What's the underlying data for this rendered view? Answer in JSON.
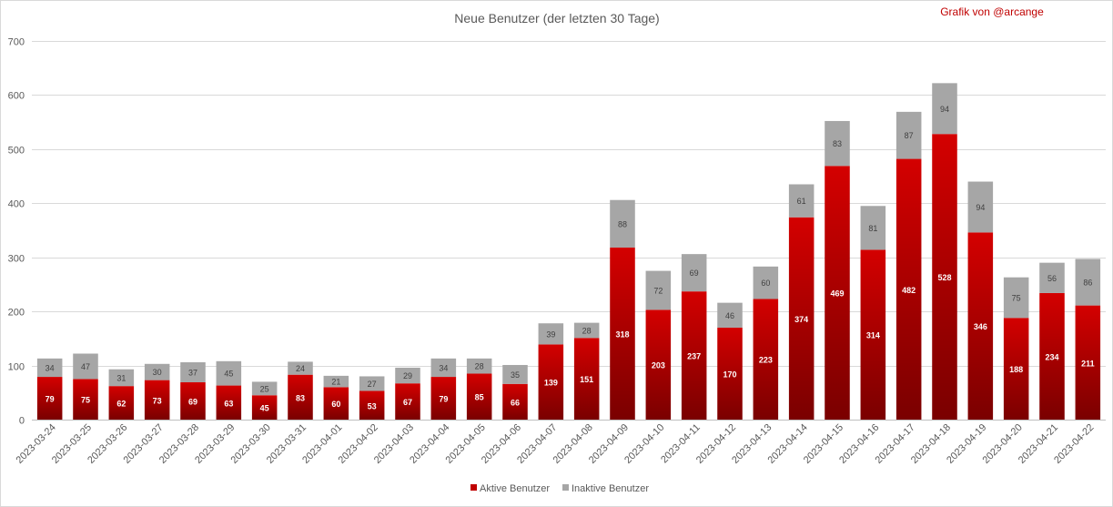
{
  "chart_data": {
    "type": "bar",
    "stacked": true,
    "title": "Neue Benutzer (der letzten 30 Tage)",
    "credit": "Grafik von @arcange",
    "xlabel": "",
    "ylabel": "",
    "ylim": [
      0,
      700
    ],
    "yticks": [
      0,
      100,
      200,
      300,
      400,
      500,
      600,
      700
    ],
    "grid": true,
    "legend_position": "bottom",
    "categories": [
      "2023-03-24",
      "2023-03-25",
      "2023-03-26",
      "2023-03-27",
      "2023-03-28",
      "2023-03-29",
      "2023-03-30",
      "2023-03-31",
      "2023-04-01",
      "2023-04-02",
      "2023-04-03",
      "2023-04-04",
      "2023-04-05",
      "2023-04-06",
      "2023-04-07",
      "2023-04-08",
      "2023-04-09",
      "2023-04-10",
      "2023-04-11",
      "2023-04-12",
      "2023-04-13",
      "2023-04-14",
      "2023-04-15",
      "2023-04-16",
      "2023-04-17",
      "2023-04-18",
      "2023-04-19",
      "2023-04-20",
      "2023-04-21",
      "2023-04-22"
    ],
    "series": [
      {
        "name": "Aktive Benutzer",
        "color": "#c00000",
        "values": [
          79,
          75,
          62,
          73,
          69,
          63,
          45,
          83,
          60,
          53,
          67,
          79,
          85,
          66,
          139,
          151,
          318,
          203,
          237,
          170,
          223,
          374,
          469,
          314,
          482,
          528,
          346,
          188,
          234,
          211
        ]
      },
      {
        "name": "Inaktive Benutzer",
        "color": "#a6a6a6",
        "values": [
          34,
          47,
          31,
          30,
          37,
          45,
          25,
          24,
          21,
          27,
          29,
          34,
          28,
          35,
          39,
          28,
          88,
          72,
          69,
          46,
          60,
          61,
          83,
          81,
          87,
          94,
          94,
          75,
          56,
          86
        ]
      }
    ]
  }
}
